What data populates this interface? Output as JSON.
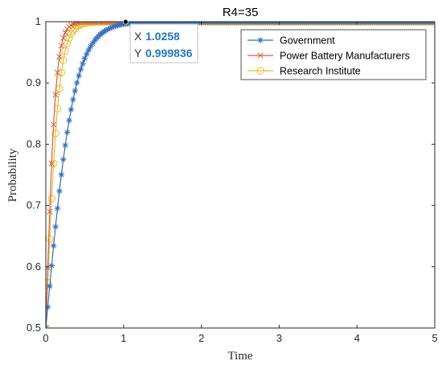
{
  "chart_data": {
    "type": "line",
    "title": "R4=35",
    "xlabel": "Time",
    "ylabel": "Probability",
    "xlim": [
      0,
      5
    ],
    "ylim": [
      0.5,
      1
    ],
    "xticks": [
      "0",
      "1",
      "2",
      "3",
      "4",
      "5"
    ],
    "yticks": [
      "0.5",
      "0.6",
      "0.7",
      "0.8",
      "0.9",
      "1"
    ],
    "grid": false,
    "legend_position": "top-right",
    "series": [
      {
        "name": "Government",
        "color": "#2e6fc2",
        "marker": "asterisk",
        "rate": 5.5
      },
      {
        "name": "Power Battery Manufacturers",
        "color": "#d9603b",
        "marker": "x",
        "rate": 16
      },
      {
        "name": "Research Institute",
        "color": "#e8be2b",
        "marker": "circle",
        "rate": 12
      }
    ],
    "marker_step": 0.025,
    "datatip": {
      "x_label": "X",
      "x_value": "1.0258",
      "y_label": "Y",
      "y_value": "0.999836",
      "x": 1.0258,
      "y": 0.999836
    }
  }
}
